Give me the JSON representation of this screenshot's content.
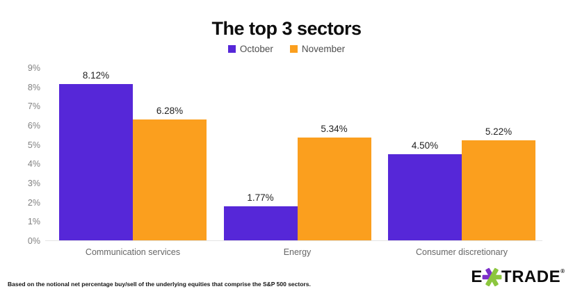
{
  "chart_data": {
    "type": "bar",
    "title": "The top 3 sectors",
    "categories": [
      "Communication services",
      "Energy",
      "Consumer discretionary"
    ],
    "series": [
      {
        "name": "October",
        "color": "#5627d8",
        "values": [
          8.12,
          1.77,
          4.5
        ],
        "labels": [
          "8.12%",
          "1.77%",
          "4.50%"
        ]
      },
      {
        "name": "November",
        "color": "#fb9f1e",
        "values": [
          6.28,
          5.34,
          5.22
        ],
        "labels": [
          "6.28%",
          "5.34%",
          "5.22%"
        ]
      }
    ],
    "ylim": [
      0,
      9
    ],
    "yticks": [
      "0%",
      "1%",
      "2%",
      "3%",
      "4%",
      "5%",
      "6%",
      "7%",
      "8%",
      "9%"
    ],
    "grid": false,
    "legend_position": "top"
  },
  "footnote": "Based on the notional net percentage buy/sell of the underlying equities that comprise the S&P 500 sectors.",
  "logo": {
    "prefix": "E",
    "suffix": "TRADE",
    "registered": "®",
    "asterisk_purple": "#7b2fc9",
    "asterisk_green": "#8cc63f"
  }
}
